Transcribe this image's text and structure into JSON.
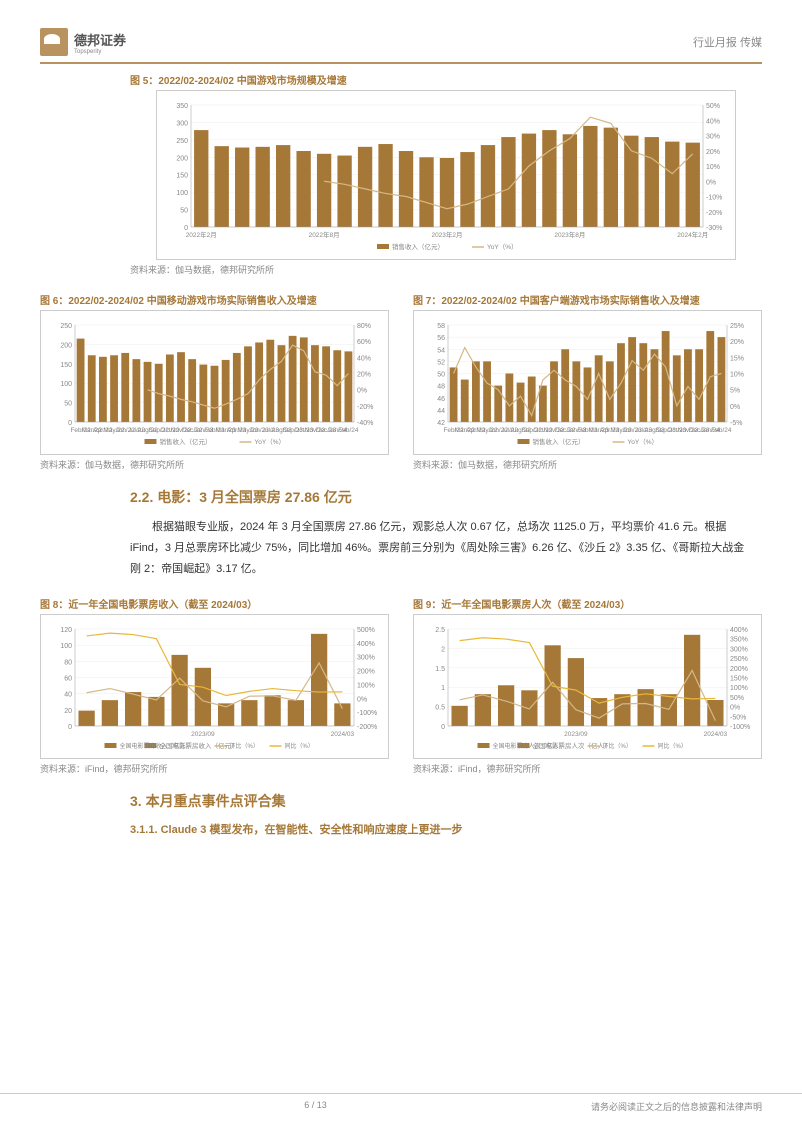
{
  "header": {
    "company_cn": "德邦证券",
    "company_en": "Topsperity",
    "right": "行业月报  传媒"
  },
  "chart5": {
    "title": "图 5：2022/02-2024/02 中国游戏市场规模及增速",
    "source": "资料来源：伽马数据，德邦研究所所",
    "type": "bar+line",
    "categories": [
      "2022年2月",
      "",
      "",
      "",
      "",
      "",
      "2022年8月",
      "",
      "",
      "",
      "",
      "",
      "2023年2月",
      "",
      "",
      "",
      "",
      "",
      "2023年8月",
      "",
      "",
      "",
      "",
      "",
      "2024年2月"
    ],
    "bars": [
      278,
      232,
      228,
      230,
      235,
      218,
      210,
      205,
      230,
      238,
      218,
      200,
      198,
      215,
      235,
      258,
      268,
      278,
      266,
      290,
      285,
      262,
      258,
      245,
      242
    ],
    "line": [
      null,
      null,
      null,
      null,
      null,
      null,
      0,
      -2,
      -5,
      -8,
      -10,
      -14,
      -18,
      -15,
      -10,
      -5,
      10,
      20,
      28,
      42,
      38,
      20,
      15,
      5,
      18
    ],
    "ylim_left": [
      0,
      350
    ],
    "ytick_left": 50,
    "ylim_right": [
      -30,
      50
    ],
    "ytick_right": 10,
    "bar_color": "#a67838",
    "line_color": "#d4b886",
    "grid_color": "#e5e5e5",
    "bar_legend": "销售收入（亿元）",
    "line_legend": "YoY（%）"
  },
  "chart6": {
    "title": "图 6：2022/02-2024/02 中国移动游戏市场实际销售收入及增速",
    "source": "资料来源：伽马数据，德邦研究所所",
    "type": "bar+line",
    "categories": [
      "Feb/22",
      "Mar/22",
      "Apr/22",
      "May/22",
      "Jun/22",
      "Jul/22",
      "Aug/22",
      "Sep/22",
      "Oct/22",
      "Nov/22",
      "Dec/22",
      "Jan/23",
      "Feb/23",
      "Mar/23",
      "Apr/23",
      "May/23",
      "Jun/23",
      "Jul/23",
      "Aug/23",
      "Sep/23",
      "Oct/23",
      "Nov/23",
      "Dec/23",
      "Jan/24",
      "Feb/24"
    ],
    "bars": [
      215,
      172,
      168,
      172,
      178,
      162,
      155,
      150,
      174,
      180,
      162,
      148,
      145,
      160,
      178,
      195,
      205,
      212,
      198,
      222,
      218,
      198,
      195,
      185,
      182
    ],
    "line": [
      null,
      null,
      null,
      null,
      null,
      null,
      0,
      -5,
      -8,
      -12,
      -15,
      -19,
      -23,
      -18,
      -12,
      -5,
      12,
      25,
      35,
      55,
      48,
      22,
      18,
      5,
      20
    ],
    "ylim_left": [
      0,
      250
    ],
    "ytick_left": 50,
    "ylim_right": [
      -40,
      80
    ],
    "ytick_right": 20,
    "bar_color": "#a67838",
    "line_color": "#d4b886",
    "bar_legend": "销售收入（亿元）",
    "line_legend": "YoY（%）"
  },
  "chart7": {
    "title": "图 7：2022/02-2024/02 中国客户端游戏市场实际销售收入及增速",
    "source": "资料来源：伽马数据，德邦研究所所",
    "type": "bar+line",
    "categories": [
      "Feb/22",
      "Mar/22",
      "Apr/22",
      "May/22",
      "Jun/22",
      "Jul/22",
      "Aug/22",
      "Sep/22",
      "Oct/22",
      "Nov/22",
      "Dec/22",
      "Jan/23",
      "Feb/23",
      "Mar/23",
      "Apr/23",
      "May/23",
      "Jun/23",
      "Jul/23",
      "Aug/23",
      "Sep/23",
      "Oct/23",
      "Nov/23",
      "Dec/23",
      "Jan/24",
      "Feb/24"
    ],
    "bars": [
      51,
      49,
      52,
      52,
      48,
      50,
      48.5,
      49.5,
      48,
      52,
      54,
      52,
      51,
      53,
      52,
      55,
      56,
      55,
      54,
      57,
      53,
      54,
      54,
      57,
      56
    ],
    "line": [
      10,
      18,
      12,
      7,
      5,
      0,
      3,
      -3,
      8,
      11,
      8,
      6,
      2,
      10,
      2,
      7,
      14,
      11,
      16,
      12,
      0,
      6,
      2,
      9,
      10
    ],
    "ylim_left": [
      42,
      58
    ],
    "ytick_left": 2,
    "ylim_right": [
      -5,
      25
    ],
    "ytick_right": 5,
    "bar_color": "#a67838",
    "line_color": "#d4b886",
    "bar_legend": "销售收入（亿元）",
    "line_legend": "YoY（%）"
  },
  "section22": {
    "title": "2.2. 电影：3 月全国票房 27.86 亿元",
    "body": "根据猫眼专业版，2024 年 3 月全国票房 27.86 亿元，观影总人次 0.67 亿，总场次 1125.0 万，平均票价 41.6 元。根据 iFind，3 月总票房环比减少 75%，同比增加 46%。票房前三分别为《周处除三害》6.26 亿、《沙丘 2》3.35 亿、《哥斯拉大战金刚 2：帝国崛起》3.17 亿。"
  },
  "chart8": {
    "title": "图 8：近一年全国电影票房收入（截至 2024/03）",
    "source": "资料来源：iFind，德邦研究所所",
    "type": "bar+2line",
    "categories": [
      "",
      "",
      "",
      "",
      "",
      "2023/09",
      "",
      "",
      "",
      "",
      "",
      "2024/03"
    ],
    "bars": [
      19,
      32,
      42,
      36,
      88,
      72,
      28,
      32,
      38,
      32,
      114,
      28
    ],
    "line1": [
      40,
      70,
      30,
      -12,
      145,
      -18,
      -62,
      15,
      18,
      -15,
      255,
      -75
    ],
    "line2": [
      450,
      470,
      460,
      430,
      100,
      80,
      20,
      50,
      70,
      55,
      45,
      46
    ],
    "ylim_left": [
      0,
      120
    ],
    "ytick_left": 20,
    "ylim_right": [
      -200,
      500
    ],
    "ytick_right": 100,
    "bar_color": "#a67838",
    "line1_color": "#d4b886",
    "line2_color": "#e8b838",
    "bar_legend": "全国电影票房收入（亿元）",
    "line1_legend": "环比（%）",
    "line2_legend": "同比（%）"
  },
  "chart9": {
    "title": "图 9：近一年全国电影票房人次（截至 2024/03）",
    "source": "资料来源：iFind，德邦研究所所",
    "type": "bar+2line",
    "categories": [
      "",
      "",
      "",
      "",
      "",
      "2023/09",
      "",
      "",
      "",
      "",
      "",
      "2024/03"
    ],
    "bars": [
      0.52,
      0.82,
      1.05,
      0.92,
      2.08,
      1.75,
      0.72,
      0.82,
      0.95,
      0.82,
      2.35,
      0.67
    ],
    "line1": [
      35,
      60,
      28,
      -12,
      125,
      -16,
      -59,
      14,
      16,
      -14,
      186,
      -72
    ],
    "line2": [
      340,
      355,
      348,
      330,
      105,
      85,
      18,
      48,
      66,
      52,
      40,
      42
    ],
    "ylim_left": [
      0,
      2.5
    ],
    "ytick_left": 0.5,
    "ylim_right": [
      -100,
      400
    ],
    "ytick_right": 50,
    "bar_color": "#a67838",
    "line1_color": "#d4b886",
    "line2_color": "#e8b838",
    "bar_legend": "全国电影票房人次（亿人）",
    "line1_legend": "环比（%）",
    "line2_legend": "同比（%）"
  },
  "section3": {
    "title": "3. 本月重点事件点评合集"
  },
  "section311": {
    "title": "3.1.1. Claude 3 模型发布，在智能性、安全性和响应速度上更进一步"
  },
  "footer": {
    "page": "6 / 13",
    "disclaimer": "请务必阅读正文之后的信息披露和法律声明"
  }
}
